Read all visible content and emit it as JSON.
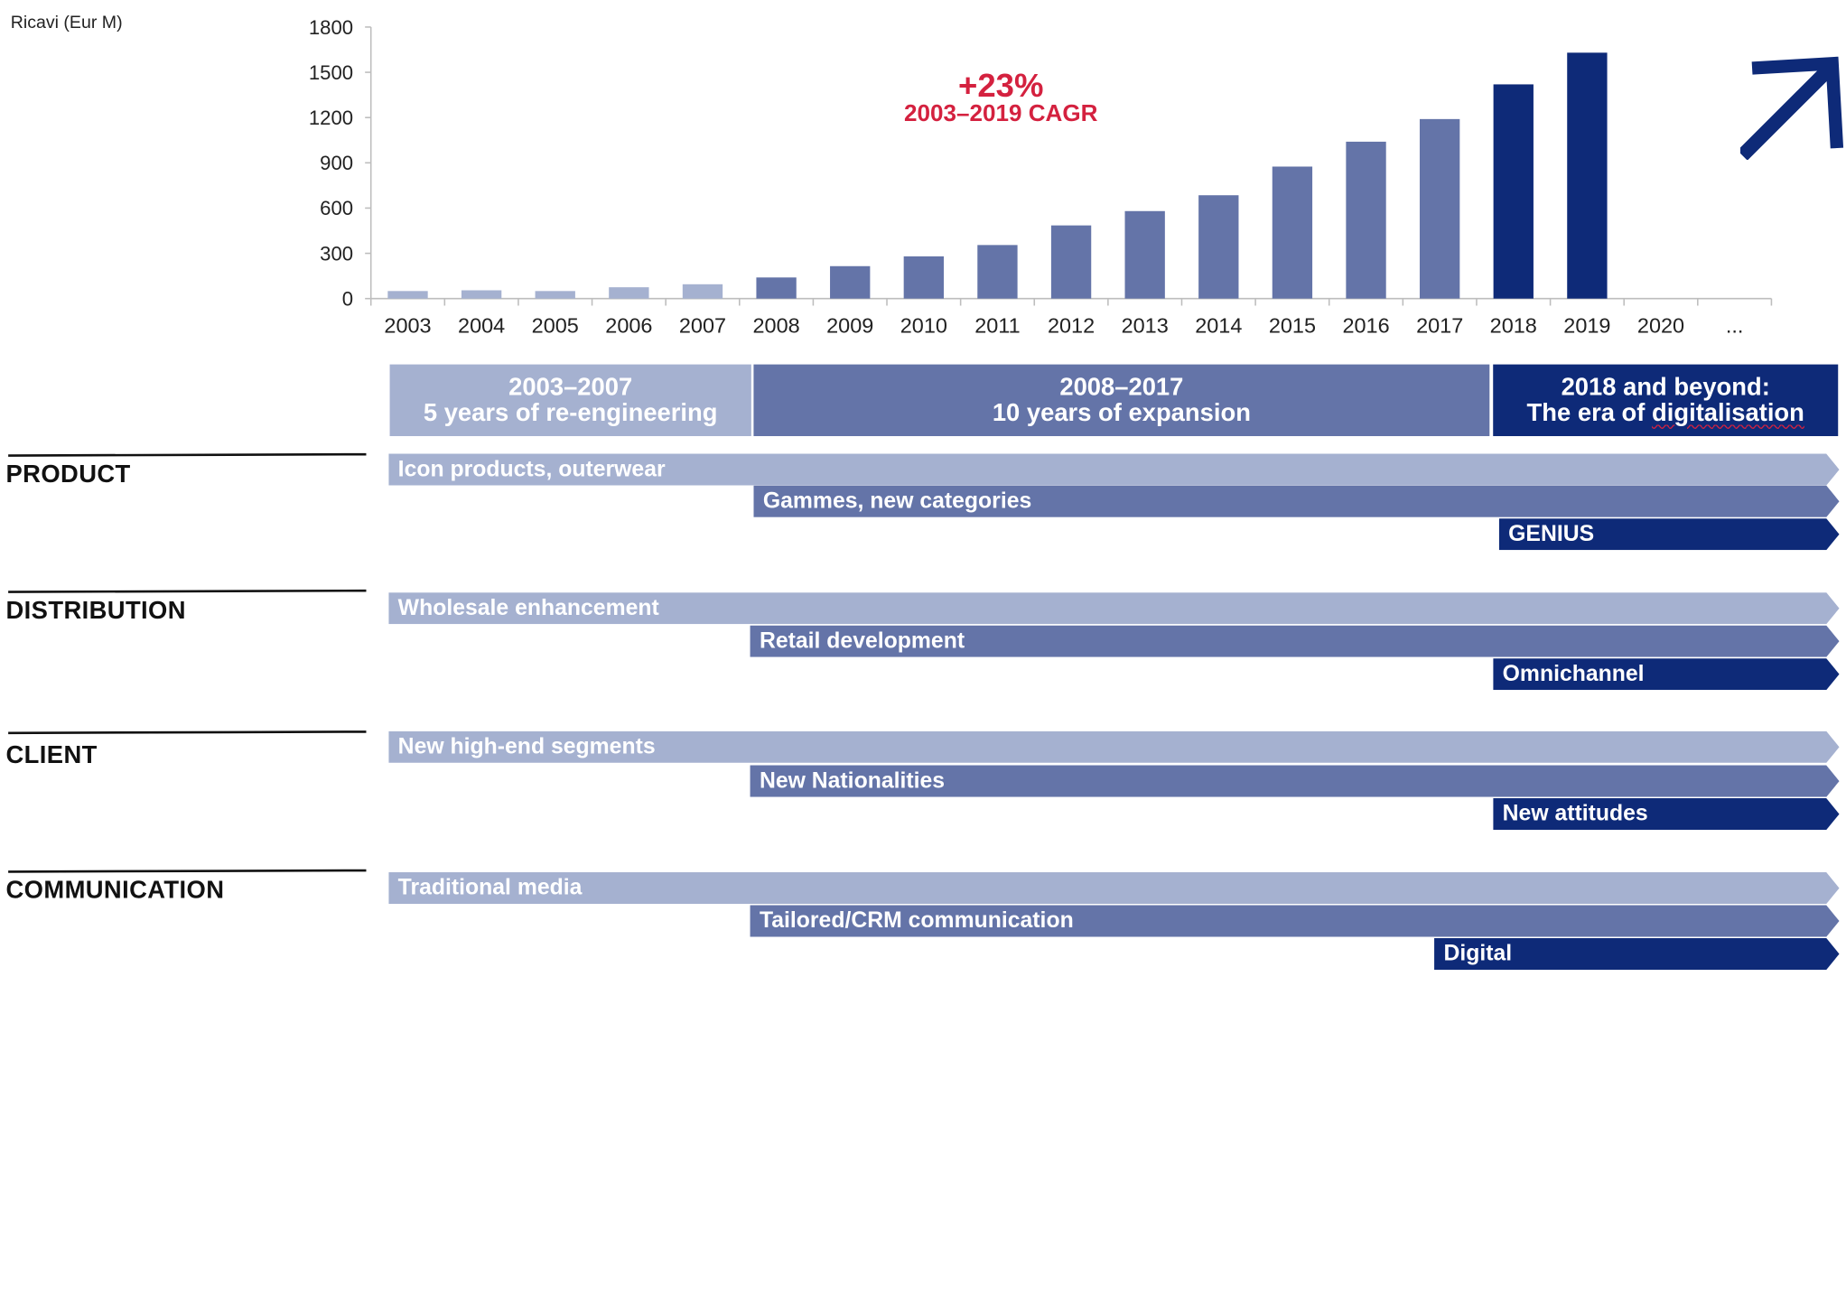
{
  "chart_data": {
    "type": "bar",
    "ylabel": "Ricavi (Eur M)",
    "ylim": [
      0,
      1800
    ],
    "yticks": [
      0,
      300,
      600,
      900,
      1200,
      1500,
      1800
    ],
    "categories": [
      "2003",
      "2004",
      "2005",
      "2006",
      "2007",
      "2008",
      "2009",
      "2010",
      "2011",
      "2012",
      "2013",
      "2014",
      "2015",
      "2016",
      "2017",
      "2018",
      "2019",
      "2020",
      "..."
    ],
    "values": [
      50,
      55,
      50,
      75,
      95,
      140,
      215,
      280,
      355,
      485,
      580,
      685,
      875,
      1040,
      1190,
      1420,
      1630,
      null,
      null
    ],
    "bar_colors": [
      "#a5b1d0",
      "#a5b1d0",
      "#a5b1d0",
      "#a5b1d0",
      "#a5b1d0",
      "#6474a8",
      "#6474a8",
      "#6474a8",
      "#6474a8",
      "#6474a8",
      "#6474a8",
      "#6474a8",
      "#6474a8",
      "#6474a8",
      "#6474a8",
      "#0e2a78",
      "#0e2a78",
      null,
      null
    ],
    "annotation": {
      "value": "+23%",
      "text": "2003–2019 CAGR",
      "color": "#d4213f"
    },
    "grid": false
  },
  "periods": [
    {
      "line1": "2003–2007",
      "line2": "5 years of re-engineering",
      "color": "#a5b1d0"
    },
    {
      "line1": "2008–2017",
      "line2": "10 years of expansion",
      "color": "#6474a8"
    },
    {
      "line1": "2018 and beyond:",
      "line2_prefix": "The era of ",
      "line2_word": "digitalisation",
      "color": "#0e2a78"
    }
  ],
  "dimensions": {
    "product": {
      "label": "PRODUCT",
      "bars": [
        "Icon products, outerwear",
        "Gammes, new categories",
        "GENIUS"
      ]
    },
    "distribution": {
      "label": "DISTRIBUTION",
      "bars": [
        "Wholesale enhancement",
        "Retail development",
        "Omnichannel"
      ]
    },
    "client": {
      "label": "CLIENT",
      "bars": [
        "New high-end segments",
        "New Nationalities",
        "New attitudes"
      ]
    },
    "communication": {
      "label": "COMMUNICATION",
      "bars": [
        "Traditional media",
        "Tailored/CRM communication",
        "Digital"
      ]
    }
  },
  "colors": {
    "light": "#a5b1d0",
    "mid": "#6474a8",
    "dark": "#0e2a78",
    "accent": "#d4213f"
  },
  "icons": {
    "trend": "up-right-arrow-icon"
  }
}
